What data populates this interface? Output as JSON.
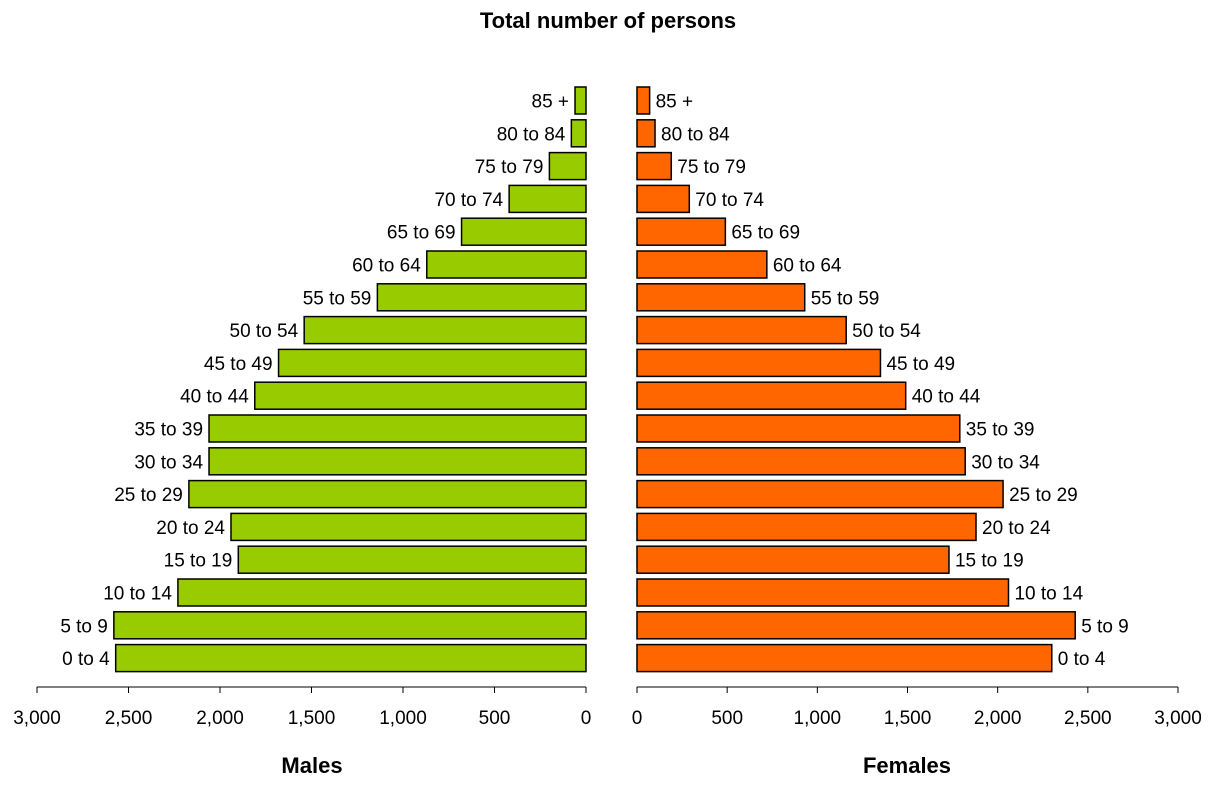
{
  "chart_data": {
    "type": "bar",
    "title": "Total number of persons",
    "categories": [
      "0 to 4",
      "5 to 9",
      "10 to 14",
      "15 to 19",
      "20 to 24",
      "25 to 29",
      "30 to 34",
      "35 to 39",
      "40 to 44",
      "45 to 49",
      "50 to 54",
      "55 to 59",
      "60 to 64",
      "65 to 69",
      "70 to 74",
      "75 to 79",
      "80 to 84",
      "85 +"
    ],
    "series": [
      {
        "name": "Males",
        "color": "#99cc00",
        "values": [
          2570,
          2580,
          2230,
          1900,
          1940,
          2170,
          2060,
          2060,
          1810,
          1680,
          1540,
          1140,
          870,
          680,
          420,
          200,
          80,
          60
        ]
      },
      {
        "name": "Females",
        "color": "#ff6600",
        "values": [
          2300,
          2430,
          2060,
          1730,
          1880,
          2030,
          1820,
          1790,
          1490,
          1350,
          1160,
          930,
          720,
          490,
          290,
          190,
          100,
          70
        ]
      }
    ],
    "xlim": [
      0,
      3000
    ],
    "xticks": [
      "3,000",
      "2,500",
      "2,000",
      "1,500",
      "1,000",
      "500",
      "0"
    ],
    "xticks_right": [
      "0",
      "500",
      "1,000",
      "1,500",
      "2,000",
      "2,500",
      "3,000"
    ],
    "xlabel_left": "Males",
    "xlabel_right": "Females",
    "grid": false,
    "legend": "none"
  }
}
